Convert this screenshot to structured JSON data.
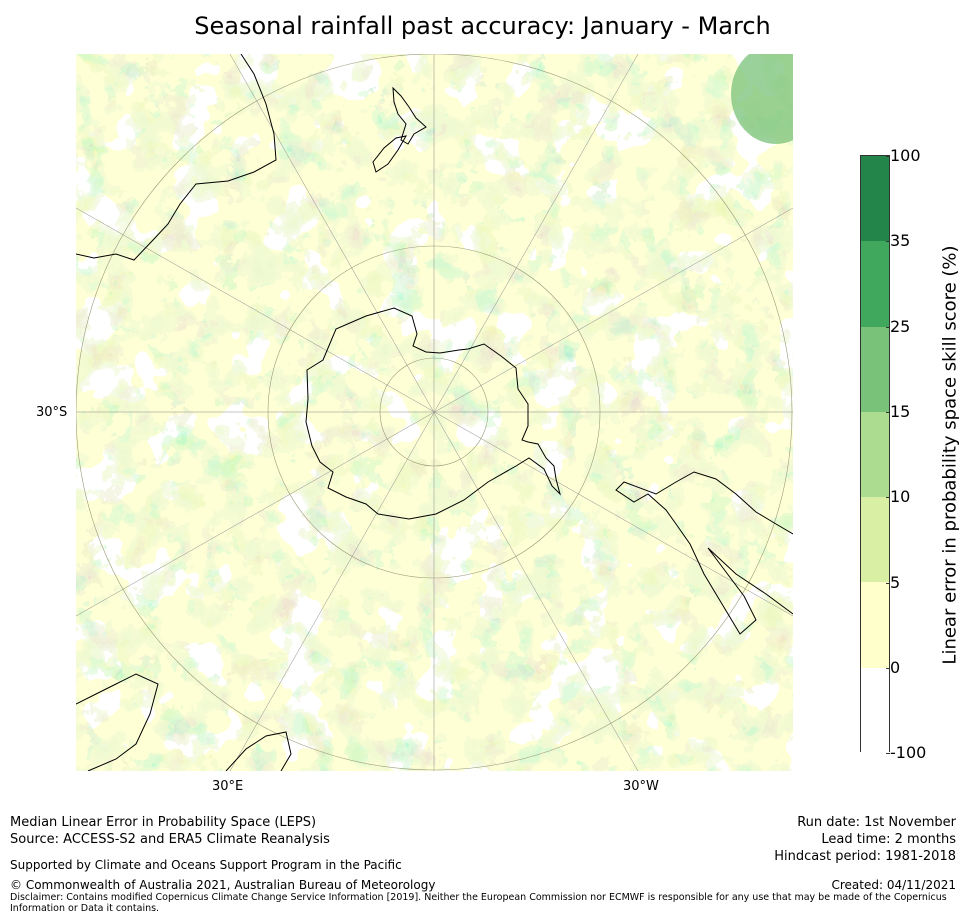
{
  "title": "Seasonal rainfall past accuracy: January - March",
  "map": {
    "projection": "south-polar-stereographic",
    "axis_labels": {
      "left": "30°S",
      "bottom_left": "30°E",
      "bottom_right": "30°W"
    }
  },
  "colorbar": {
    "label": "Linear error in probability space skill score (%)",
    "ticks": [
      "100",
      "35",
      "25",
      "15",
      "10",
      "5",
      "0",
      "-100"
    ],
    "colors": [
      "#23854a",
      "#3fa85c",
      "#78c27a",
      "#acdc8f",
      "#d9efa3",
      "#ffffcc",
      "#ffffff"
    ]
  },
  "footer": {
    "left_line1": "Median Linear Error in Probability Space (LEPS)",
    "left_line2": "Source: ACCESS-S2 and ERA5 Climate Reanalysis",
    "support": "Supported by Climate and Oceans Support Program in the Pacific",
    "copyright": "© Commonwealth of Australia 2021, Australian Bureau of Meteorology",
    "disclaimer_line1": "Disclaimer: Contains modified Copernicus Climate Change Service Information [2019]. Neither the European Commission nor ECMWF is responsible for any use that may be made of the Copernicus",
    "disclaimer_line2": "Information or Data it contains.",
    "run_date": "Run date: 1st November",
    "lead_time": "Lead time: 2 months",
    "hindcast": "Hindcast period: 1981-2018",
    "created": "Created: 04/11/2021"
  }
}
